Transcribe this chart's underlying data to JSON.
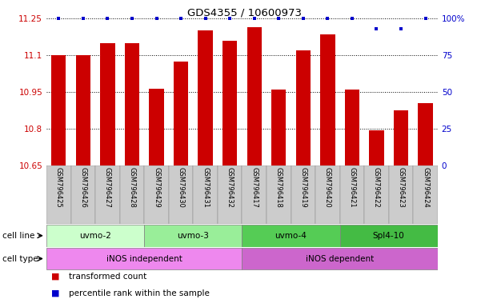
{
  "title": "GDS4355 / 10600973",
  "samples": [
    "GSM796425",
    "GSM796426",
    "GSM796427",
    "GSM796428",
    "GSM796429",
    "GSM796430",
    "GSM796431",
    "GSM796432",
    "GSM796417",
    "GSM796418",
    "GSM796419",
    "GSM796420",
    "GSM796421",
    "GSM796422",
    "GSM796423",
    "GSM796424"
  ],
  "bar_values": [
    11.1,
    11.1,
    11.15,
    11.15,
    10.965,
    11.075,
    11.2,
    11.16,
    11.215,
    10.96,
    11.12,
    11.185,
    10.96,
    10.795,
    10.875,
    10.905
  ],
  "percentile_values": [
    100,
    100,
    100,
    100,
    100,
    100,
    100,
    100,
    100,
    100,
    100,
    100,
    100,
    93,
    93,
    100
  ],
  "bar_color": "#cc0000",
  "dot_color": "#0000cc",
  "ylim_left": [
    10.65,
    11.25
  ],
  "ylim_right": [
    0,
    100
  ],
  "yticks_left": [
    10.65,
    10.8,
    10.95,
    11.1,
    11.25
  ],
  "yticks_right": [
    0,
    25,
    50,
    75,
    100
  ],
  "ytick_labels_left": [
    "10.65",
    "10.8",
    "10.95",
    "11.1",
    "11.25"
  ],
  "ytick_labels_right": [
    "0",
    "25",
    "50",
    "75",
    "100%"
  ],
  "cell_lines": [
    {
      "label": "uvmo-2",
      "start": 0,
      "end": 4,
      "color": "#ccffcc"
    },
    {
      "label": "uvmo-3",
      "start": 4,
      "end": 8,
      "color": "#99ee99"
    },
    {
      "label": "uvmo-4",
      "start": 8,
      "end": 12,
      "color": "#55cc55"
    },
    {
      "label": "Spl4-10",
      "start": 12,
      "end": 16,
      "color": "#44bb44"
    }
  ],
  "cell_types": [
    {
      "label": "iNOS independent",
      "start": 0,
      "end": 8,
      "color": "#ee88ee"
    },
    {
      "label": "iNOS dependent",
      "start": 8,
      "end": 16,
      "color": "#cc66cc"
    }
  ],
  "legend_red_label": "transformed count",
  "legend_blue_label": "percentile rank within the sample",
  "bar_width": 0.6,
  "background_color": "#ffffff",
  "label_row_color": "#dddddd",
  "label_text_color": "#444444"
}
